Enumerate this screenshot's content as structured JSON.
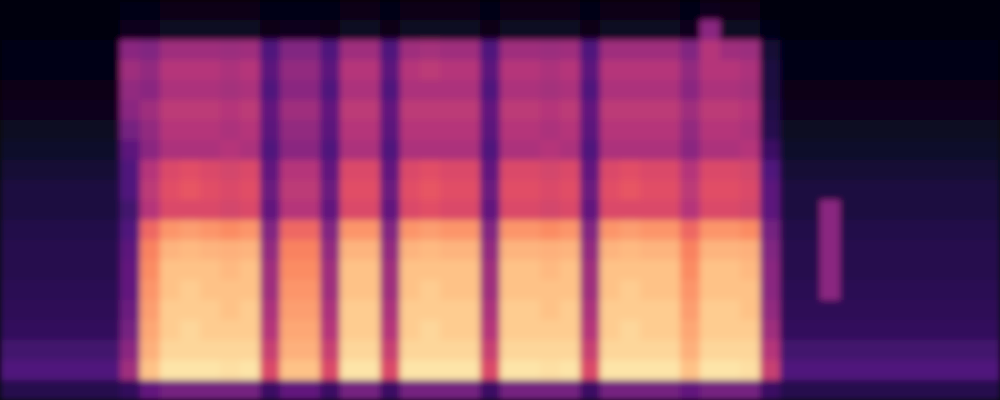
{
  "chart_data": {
    "type": "heatmap",
    "tick_labels": false,
    "color_range": [
      0,
      100
    ],
    "cells": [
      [
        2,
        2,
        3,
        3,
        4,
        5,
        6,
        8,
        10,
        12,
        12,
        14,
        15,
        15,
        16,
        17,
        18,
        22,
        25,
        15
      ],
      [
        2,
        2,
        3,
        3,
        4,
        5,
        6,
        8,
        10,
        12,
        12,
        14,
        15,
        15,
        16,
        17,
        18,
        22,
        25,
        15
      ],
      [
        2,
        2,
        3,
        3,
        4,
        5,
        6,
        8,
        10,
        12,
        12,
        14,
        15,
        15,
        16,
        17,
        18,
        22,
        25,
        15
      ],
      [
        2,
        2,
        3,
        3,
        4,
        5,
        6,
        8,
        10,
        12,
        12,
        14,
        15,
        15,
        16,
        17,
        18,
        22,
        25,
        15
      ],
      [
        2,
        2,
        3,
        3,
        4,
        5,
        6,
        8,
        10,
        12,
        12,
        14,
        15,
        15,
        16,
        17,
        18,
        22,
        25,
        15
      ],
      [
        2,
        2,
        3,
        3,
        4,
        5,
        6,
        8,
        10,
        12,
        12,
        14,
        15,
        15,
        16,
        17,
        18,
        22,
        25,
        15
      ],
      [
        3,
        5,
        40,
        45,
        42,
        40,
        35,
        28,
        25,
        25,
        22,
        25,
        28,
        30,
        30,
        32,
        35,
        40,
        45,
        18
      ],
      [
        3,
        5,
        38,
        42,
        40,
        45,
        42,
        40,
        50,
        52,
        50,
        68,
        74,
        76,
        78,
        80,
        82,
        84,
        88,
        30
      ],
      [
        4,
        6,
        45,
        50,
        48,
        52,
        50,
        48,
        60,
        62,
        60,
        78,
        85,
        88,
        88,
        90,
        90,
        92,
        95,
        35
      ],
      [
        4,
        6,
        45,
        50,
        48,
        52,
        50,
        48,
        62,
        64,
        60,
        80,
        86,
        88,
        90,
        90,
        92,
        92,
        95,
        35
      ],
      [
        4,
        6,
        45,
        50,
        48,
        52,
        50,
        48,
        60,
        62,
        60,
        78,
        85,
        88,
        88,
        90,
        90,
        92,
        95,
        35
      ],
      [
        4,
        6,
        44,
        48,
        46,
        50,
        48,
        50,
        58,
        60,
        58,
        76,
        84,
        86,
        88,
        88,
        90,
        92,
        94,
        35
      ],
      [
        4,
        6,
        45,
        50,
        48,
        52,
        50,
        48,
        60,
        62,
        60,
        78,
        85,
        88,
        88,
        90,
        90,
        92,
        95,
        35
      ],
      [
        3,
        4,
        25,
        28,
        25,
        30,
        28,
        25,
        30,
        32,
        30,
        38,
        42,
        45,
        45,
        48,
        50,
        55,
        60,
        20
      ],
      [
        3,
        5,
        38,
        42,
        40,
        45,
        42,
        40,
        50,
        52,
        50,
        68,
        74,
        76,
        78,
        80,
        82,
        84,
        88,
        30
      ],
      [
        3,
        5,
        38,
        42,
        40,
        45,
        42,
        40,
        50,
        52,
        50,
        68,
        74,
        76,
        78,
        80,
        82,
        84,
        88,
        30
      ],
      [
        3,
        4,
        25,
        28,
        25,
        30,
        28,
        25,
        30,
        32,
        30,
        38,
        42,
        45,
        45,
        48,
        50,
        55,
        60,
        20
      ],
      [
        4,
        6,
        45,
        50,
        48,
        52,
        50,
        48,
        60,
        62,
        60,
        78,
        85,
        88,
        88,
        90,
        90,
        92,
        95,
        35
      ],
      [
        4,
        6,
        45,
        50,
        48,
        52,
        50,
        48,
        60,
        62,
        60,
        78,
        85,
        88,
        88,
        90,
        90,
        92,
        95,
        35
      ],
      [
        3,
        4,
        25,
        28,
        25,
        30,
        28,
        25,
        30,
        32,
        30,
        38,
        42,
        45,
        45,
        48,
        50,
        55,
        60,
        20
      ],
      [
        4,
        6,
        45,
        50,
        48,
        52,
        50,
        48,
        60,
        62,
        60,
        78,
        85,
        88,
        88,
        90,
        90,
        92,
        95,
        35
      ],
      [
        4,
        6,
        46,
        52,
        48,
        52,
        50,
        48,
        62,
        64,
        62,
        80,
        86,
        88,
        90,
        90,
        92,
        92,
        95,
        35
      ],
      [
        4,
        6,
        45,
        50,
        48,
        52,
        50,
        48,
        60,
        62,
        60,
        78,
        85,
        88,
        88,
        90,
        90,
        92,
        95,
        35
      ],
      [
        4,
        6,
        45,
        50,
        48,
        52,
        50,
        48,
        60,
        62,
        60,
        78,
        85,
        88,
        88,
        90,
        90,
        92,
        95,
        35
      ],
      [
        3,
        4,
        25,
        28,
        25,
        30,
        28,
        25,
        30,
        32,
        30,
        38,
        42,
        45,
        45,
        48,
        50,
        55,
        60,
        20
      ],
      [
        4,
        6,
        45,
        50,
        48,
        52,
        50,
        48,
        60,
        62,
        60,
        78,
        85,
        88,
        88,
        90,
        90,
        92,
        95,
        35
      ],
      [
        4,
        6,
        45,
        50,
        48,
        52,
        50,
        48,
        60,
        62,
        60,
        78,
        85,
        88,
        88,
        90,
        90,
        92,
        95,
        35
      ],
      [
        4,
        6,
        44,
        48,
        46,
        50,
        48,
        50,
        58,
        60,
        58,
        76,
        84,
        86,
        88,
        88,
        90,
        92,
        94,
        35
      ],
      [
        4,
        6,
        45,
        50,
        48,
        52,
        50,
        48,
        60,
        62,
        60,
        78,
        85,
        88,
        88,
        90,
        90,
        92,
        95,
        35
      ],
      [
        3,
        4,
        25,
        28,
        25,
        30,
        28,
        25,
        30,
        32,
        30,
        38,
        42,
        45,
        45,
        48,
        50,
        55,
        60,
        20
      ],
      [
        4,
        6,
        45,
        50,
        48,
        52,
        50,
        48,
        60,
        62,
        60,
        78,
        85,
        88,
        88,
        90,
        90,
        92,
        95,
        35
      ],
      [
        4,
        6,
        45,
        50,
        48,
        52,
        50,
        48,
        62,
        64,
        60,
        80,
        86,
        88,
        90,
        90,
        92,
        92,
        95,
        35
      ],
      [
        4,
        6,
        45,
        50,
        48,
        52,
        50,
        48,
        60,
        62,
        60,
        78,
        85,
        88,
        88,
        90,
        90,
        92,
        95,
        35
      ],
      [
        4,
        6,
        45,
        50,
        48,
        52,
        50,
        48,
        60,
        62,
        60,
        78,
        85,
        88,
        88,
        90,
        90,
        92,
        95,
        35
      ],
      [
        3,
        5,
        38,
        42,
        40,
        45,
        42,
        40,
        50,
        52,
        50,
        68,
        74,
        76,
        78,
        80,
        82,
        84,
        88,
        30
      ],
      [
        5,
        40,
        50,
        50,
        48,
        52,
        50,
        48,
        60,
        62,
        60,
        78,
        85,
        88,
        88,
        90,
        90,
        92,
        95,
        35
      ],
      [
        4,
        6,
        45,
        50,
        48,
        52,
        50,
        48,
        60,
        62,
        60,
        78,
        85,
        88,
        88,
        90,
        90,
        92,
        95,
        35
      ],
      [
        4,
        6,
        44,
        48,
        46,
        50,
        48,
        50,
        58,
        60,
        58,
        76,
        84,
        86,
        88,
        88,
        90,
        92,
        94,
        35
      ],
      [
        2,
        3,
        10,
        12,
        12,
        14,
        15,
        20,
        25,
        28,
        28,
        35,
        38,
        40,
        40,
        42,
        45,
        50,
        55,
        20
      ],
      [
        2,
        2,
        3,
        3,
        4,
        5,
        6,
        8,
        10,
        12,
        12,
        14,
        15,
        15,
        16,
        17,
        18,
        22,
        25,
        15
      ],
      [
        2,
        2,
        3,
        3,
        4,
        5,
        6,
        8,
        10,
        12,
        12,
        14,
        15,
        15,
        16,
        17,
        18,
        22,
        25,
        15
      ],
      [
        2,
        2,
        3,
        3,
        4,
        5,
        6,
        8,
        10,
        12,
        40,
        40,
        40,
        40,
        40,
        17,
        18,
        22,
        25,
        15
      ],
      [
        2,
        2,
        3,
        3,
        4,
        5,
        6,
        8,
        10,
        12,
        12,
        14,
        15,
        15,
        16,
        17,
        18,
        22,
        25,
        15
      ],
      [
        2,
        2,
        3,
        3,
        4,
        5,
        6,
        8,
        10,
        12,
        12,
        14,
        15,
        15,
        16,
        17,
        18,
        22,
        25,
        15
      ],
      [
        2,
        2,
        3,
        3,
        4,
        5,
        6,
        8,
        10,
        12,
        12,
        14,
        15,
        15,
        16,
        17,
        18,
        22,
        25,
        15
      ],
      [
        2,
        2,
        3,
        3,
        4,
        5,
        6,
        8,
        10,
        12,
        12,
        14,
        15,
        15,
        16,
        17,
        18,
        22,
        25,
        15
      ],
      [
        2,
        2,
        3,
        3,
        4,
        5,
        6,
        8,
        10,
        12,
        12,
        14,
        15,
        15,
        16,
        17,
        18,
        22,
        25,
        15
      ],
      [
        2,
        2,
        3,
        3,
        4,
        5,
        6,
        8,
        10,
        12,
        12,
        14,
        15,
        15,
        16,
        17,
        18,
        22,
        25,
        15
      ],
      [
        2,
        2,
        3,
        3,
        4,
        5,
        6,
        8,
        10,
        12,
        12,
        14,
        15,
        15,
        16,
        17,
        18,
        22,
        25,
        15
      ],
      [
        2,
        2,
        3,
        3,
        4,
        5,
        6,
        8,
        10,
        12,
        12,
        14,
        15,
        15,
        16,
        17,
        18,
        22,
        25,
        15
      ]
    ]
  }
}
